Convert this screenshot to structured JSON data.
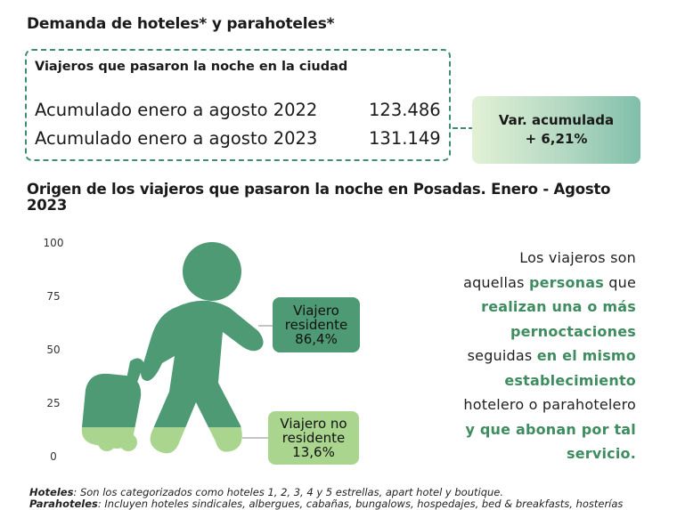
{
  "header": {
    "title": "Demanda de hoteles* y parahoteles*"
  },
  "overnight_box": {
    "heading": "Viajeros que pasaron la noche en la ciudad",
    "rows": [
      {
        "label": "Acumulado enero a agosto 2022",
        "value": "123.486"
      },
      {
        "label": "Acumulado enero a agosto 2023",
        "value": "131.149"
      }
    ]
  },
  "variation": {
    "label": "Var. acumulada",
    "value": "+ 6,21%"
  },
  "chart_section": {
    "title": "Origen de los viajeros que pasaron la noche en Posadas. Enero - Agosto 2023"
  },
  "chart_data": {
    "type": "bar",
    "title": "Origen de los viajeros que pasaron la noche en Posadas. Enero - Agosto 2023",
    "ylim": [
      0,
      100
    ],
    "yticks": [
      "100",
      "75",
      "50",
      "25",
      "0"
    ],
    "series": [
      {
        "name": "Viajero residente",
        "value": 86.4,
        "label": "86,4%",
        "color": "#4e9a74"
      },
      {
        "name": "Viajero no residente",
        "value": 13.6,
        "label": "13,6%",
        "color": "#aad58f"
      }
    ]
  },
  "callouts": {
    "resident": {
      "line1": "Viajero",
      "line2": "residente",
      "pct": "86,4%"
    },
    "nonresident": {
      "line1": "Viajero no",
      "line2": "residente",
      "pct": "13,6%"
    }
  },
  "description": {
    "l1": "Los viajeros son",
    "l2a": "aquellas ",
    "l2b": "personas",
    "l2c": " que",
    "l3": "realizan una o más",
    "l4": "pernoctaciones",
    "l5a": "seguidas ",
    "l5b": "en el mismo",
    "l6": "establecimiento",
    "l7": "hotelero o parahotelero",
    "l8": "y que abonan por tal",
    "l9": "servicio."
  },
  "notes": {
    "hoteles_label": "Hoteles",
    "hoteles_text": ": Son los categorizados como hoteles 1, 2, 3, 4 y 5 estrellas, apart hotel y boutique.",
    "parahoteles_label": "Parahoteles",
    "parahoteles_text": ": Incluyen hoteles sindicales, albergues, cabañas, bungalows, hospedajes, bed & breakfasts, hosterías"
  },
  "colors": {
    "accent_dark": "#4e9a74",
    "accent_light": "#aad58f",
    "highlight_text": "#3e8c5f",
    "dashed_border": "#3f8f6e"
  }
}
